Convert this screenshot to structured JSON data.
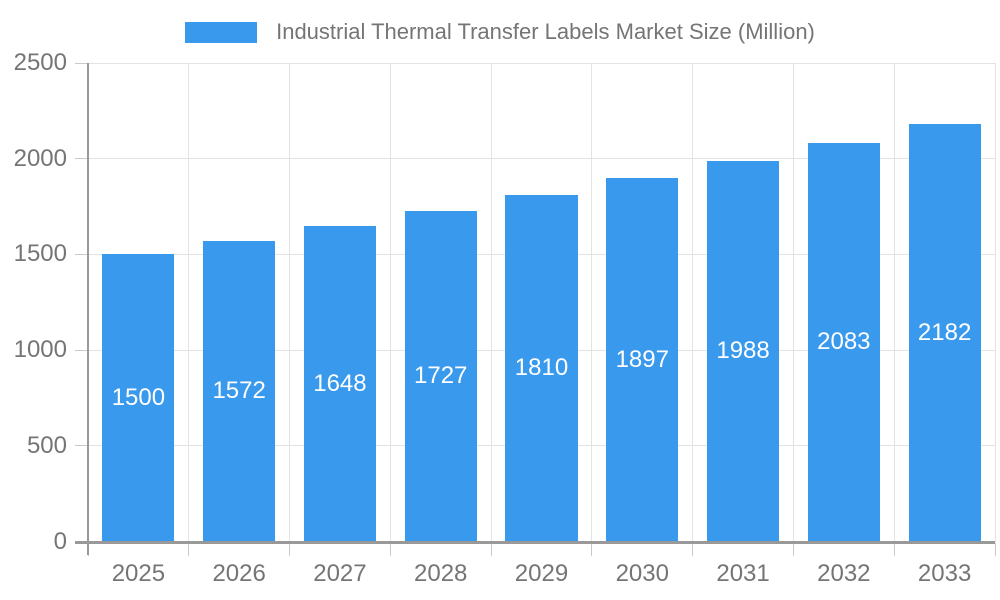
{
  "chart_data": {
    "type": "bar",
    "title": "Industrial Thermal Transfer Labels Market Size (Million)",
    "categories": [
      "2025",
      "2026",
      "2027",
      "2028",
      "2029",
      "2030",
      "2031",
      "2032",
      "2033"
    ],
    "values": [
      1500,
      1572,
      1648,
      1727,
      1810,
      1897,
      1988,
      2083,
      2182
    ],
    "xlabel": "",
    "ylabel": "",
    "ylim": [
      0,
      2500
    ],
    "yticks": [
      0,
      500,
      1000,
      1500,
      2000,
      2500
    ],
    "grid": true,
    "legend_position": "top-center",
    "value_label_position": "inside-center",
    "colors": {
      "bar": "#3999ec",
      "bar_value_text": "#ffffff",
      "axis_text": "#757575",
      "grid_line": "#e3e3e3",
      "tick_line": "#c9c9c9",
      "axis_line": "#999999",
      "background": "#ffffff"
    }
  }
}
